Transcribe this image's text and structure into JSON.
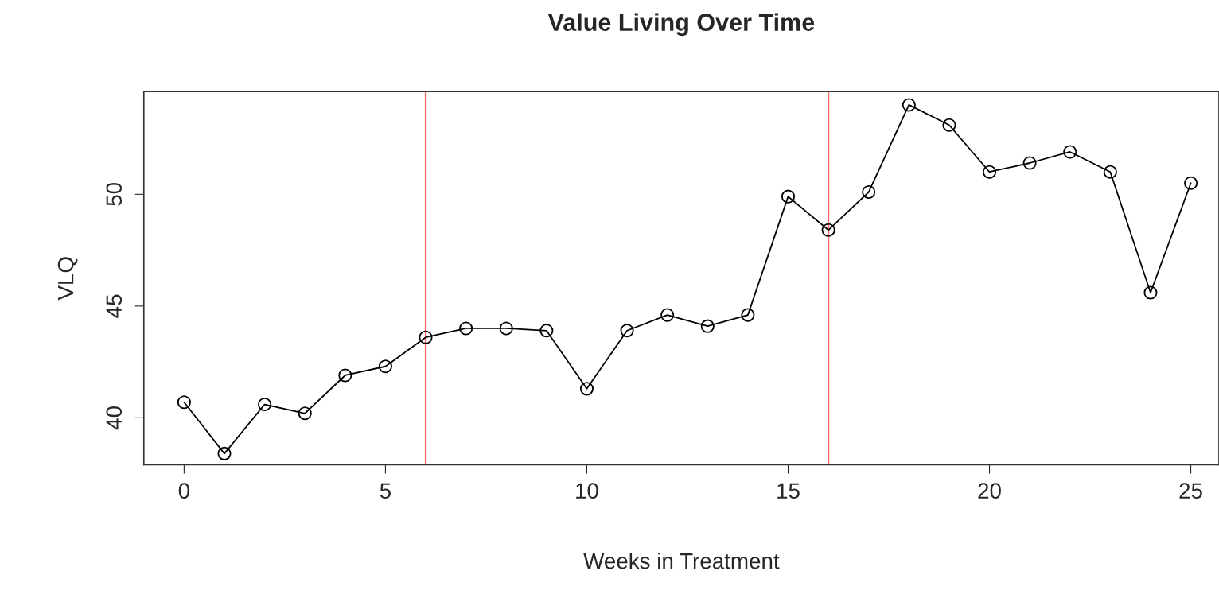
{
  "chart_data": {
    "type": "line",
    "title": "Value Living Over Time",
    "xlabel": "Weeks in Treatment",
    "ylabel": "VLQ",
    "x": [
      0,
      1,
      2,
      3,
      4,
      5,
      6,
      7,
      8,
      9,
      10,
      11,
      12,
      13,
      14,
      15,
      16,
      17,
      18,
      19,
      20,
      21,
      22,
      23,
      24,
      25
    ],
    "series": [
      {
        "color": "#000000",
        "values": [
          40.7,
          38.4,
          40.6,
          40.2,
          41.9,
          42.3,
          43.6,
          44.0,
          44.0,
          43.9,
          41.3,
          43.9,
          44.6,
          44.1,
          44.6,
          49.9,
          48.4,
          50.1,
          54.0,
          53.1,
          51.0,
          51.4,
          51.9,
          51.0,
          45.6,
          50.5
        ]
      }
    ],
    "xlim": [
      -1.0,
      25.7
    ],
    "xticks": [
      0,
      5,
      10,
      15,
      20,
      25
    ],
    "ylim": [
      37.9,
      54.6
    ],
    "yticks": [
      40,
      45,
      50
    ],
    "ref_lines": [
      {
        "axis": "x",
        "value": 6,
        "color": "#ff6666"
      },
      {
        "axis": "x",
        "value": 16,
        "color": "#ff6666"
      }
    ],
    "marker": "circle",
    "line_style": "solid",
    "grid": false,
    "legend": false
  }
}
